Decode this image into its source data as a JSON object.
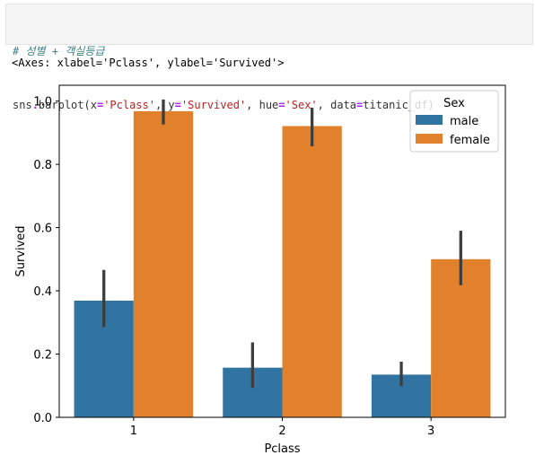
{
  "notebook": {
    "code": {
      "comment": "# 성별 + 객실등급",
      "line2_parts": [
        {
          "t": "sns",
          "c": ""
        },
        {
          "t": ".",
          "c": "op"
        },
        {
          "t": "barplot(x",
          "c": ""
        },
        {
          "t": "=",
          "c": "op"
        },
        {
          "t": "'Pclass'",
          "c": "str"
        },
        {
          "t": ", y",
          "c": ""
        },
        {
          "t": "=",
          "c": "op"
        },
        {
          "t": "'Survived'",
          "c": "str"
        },
        {
          "t": ", hue",
          "c": ""
        },
        {
          "t": "=",
          "c": "op"
        },
        {
          "t": "'Sex'",
          "c": "str"
        },
        {
          "t": ", data",
          "c": ""
        },
        {
          "t": "=",
          "c": "op"
        },
        {
          "t": "titanic_df)",
          "c": ""
        }
      ]
    },
    "output_text": "<Axes: xlabel='Pclass', ylabel='Survived'>"
  },
  "chart_data": {
    "type": "bar",
    "categories": [
      "1",
      "2",
      "3"
    ],
    "series": [
      {
        "name": "male",
        "color": "#3274a1",
        "values": [
          0.369,
          0.157,
          0.135
        ],
        "ci_low": [
          0.285,
          0.093,
          0.098
        ],
        "ci_high": [
          0.466,
          0.237,
          0.176
        ]
      },
      {
        "name": "female",
        "color": "#e1812c",
        "values": [
          0.968,
          0.921,
          0.5
        ],
        "ci_low": [
          0.926,
          0.857,
          0.418
        ],
        "ci_high": [
          1.005,
          0.979,
          0.59
        ]
      }
    ],
    "xlabel": "Pclass",
    "ylabel": "Survived",
    "ylim": [
      0,
      1.05
    ],
    "yticks": [
      0.0,
      0.2,
      0.4,
      0.6,
      0.8,
      1.0
    ],
    "ytick_labels": [
      "0.0",
      "0.2",
      "0.4",
      "0.6",
      "0.8",
      "1.0"
    ],
    "legend": {
      "title": "Sex",
      "placement": "top-right"
    },
    "grid": false,
    "errorbar_color": "#3d3d3d"
  }
}
